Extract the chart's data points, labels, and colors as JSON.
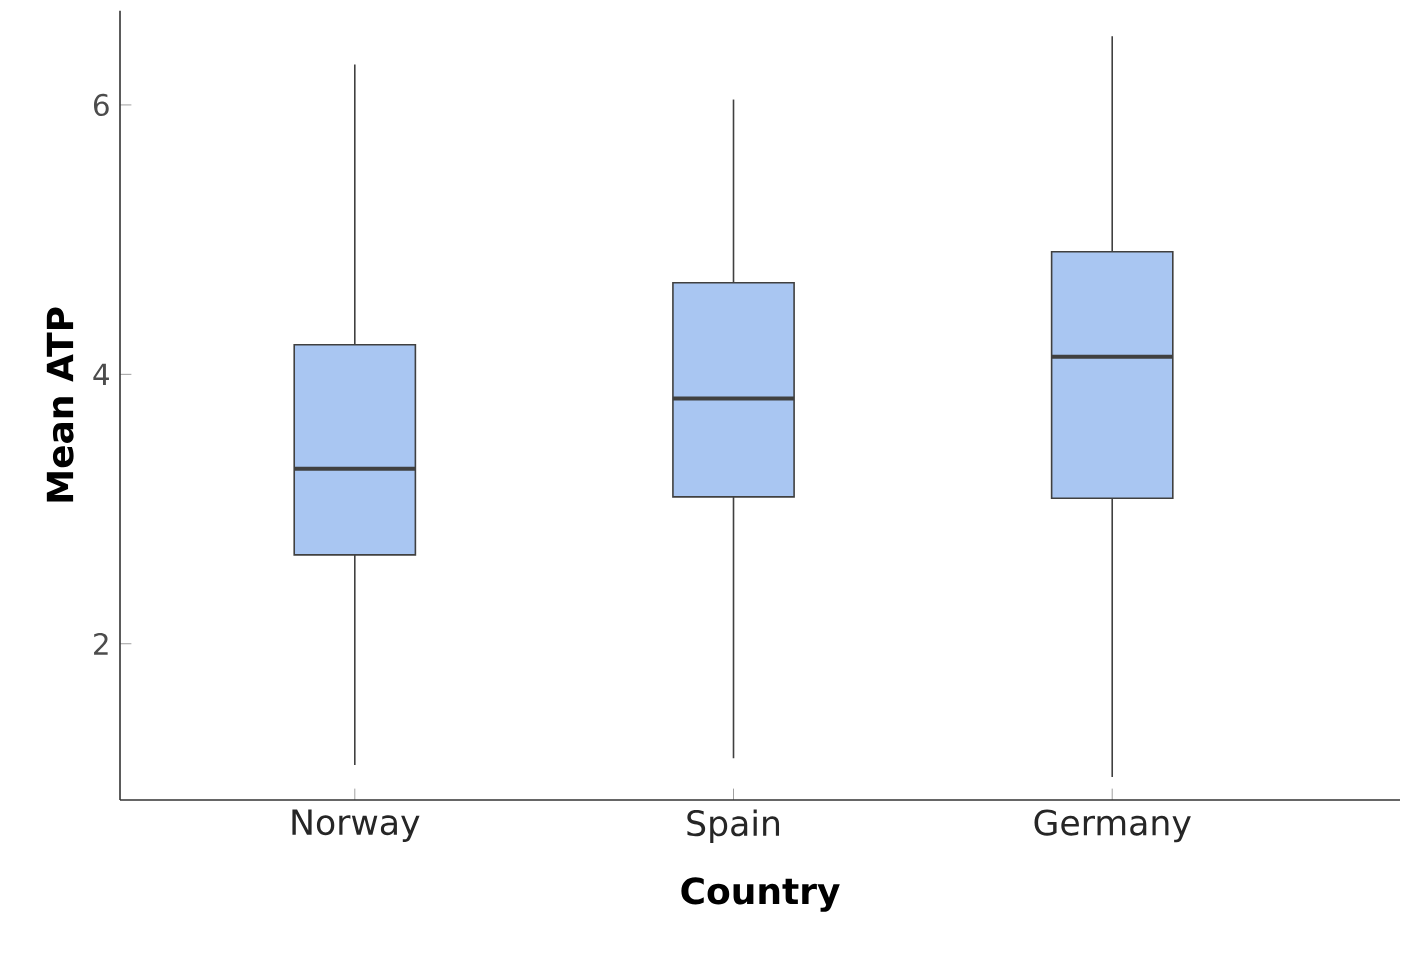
{
  "chart_data": {
    "type": "box",
    "xlabel": "Country",
    "ylabel": "Mean ATP",
    "categories": [
      "Norway",
      "Spain",
      "Germany"
    ],
    "color": "#a9c6f2",
    "boxes": [
      {
        "low": 1.1,
        "q1": 2.66,
        "median": 3.3,
        "q3": 4.22,
        "high": 6.3
      },
      {
        "low": 1.15,
        "q1": 3.09,
        "median": 3.82,
        "q3": 4.68,
        "high": 6.04
      },
      {
        "low": 1.01,
        "q1": 3.08,
        "median": 4.13,
        "q3": 4.91,
        "high": 6.51
      }
    ],
    "ylim": [
      0.84,
      6.7
    ],
    "yticks": [
      2,
      4,
      6
    ]
  }
}
